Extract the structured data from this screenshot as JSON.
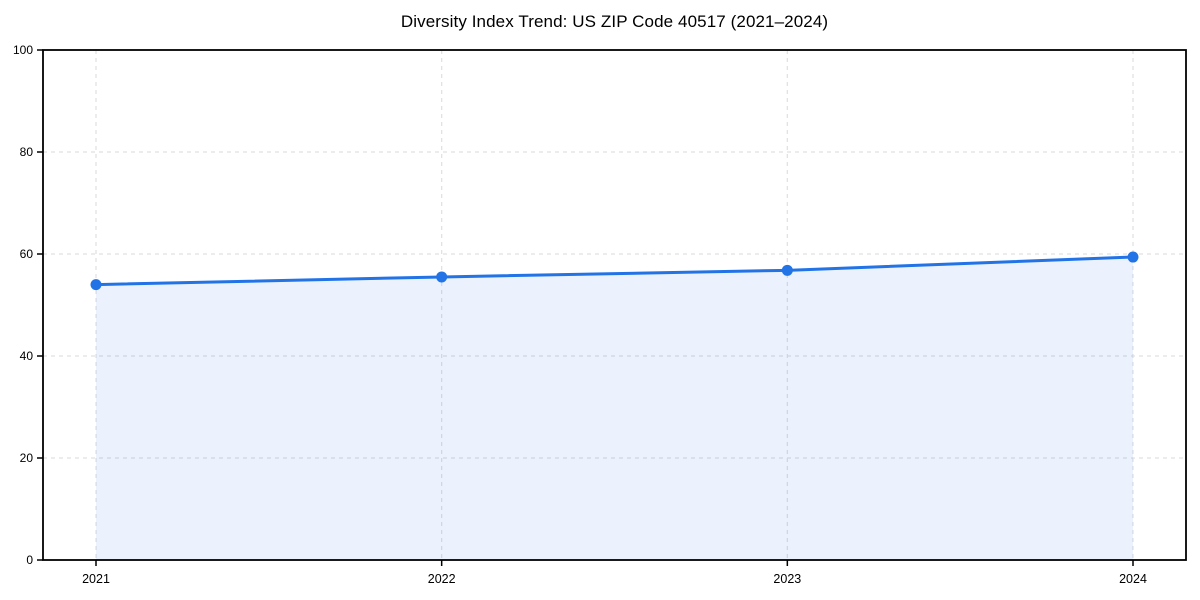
{
  "figure": {
    "background": "#ffffff"
  },
  "chart_data": {
    "type": "area",
    "title": "Diversity Index Trend: US ZIP Code 40517 (2021–2024)",
    "x": [
      "2021",
      "2022",
      "2023",
      "2024"
    ],
    "series": [
      {
        "name": "Diversity Index",
        "values": [
          54.0,
          55.5,
          56.8,
          59.4
        ]
      }
    ],
    "xlabel": "",
    "ylabel": "",
    "ylim": [
      0,
      100
    ],
    "yticks": [
      0,
      20,
      40,
      60,
      80,
      100
    ],
    "grid": true,
    "grid_style": "dashed",
    "legend": "none",
    "marker": "circle",
    "colors": {
      "line": "#2273e6",
      "marker": "#2273e6",
      "fill": "rgba(34, 115, 230, 0.09)",
      "grid": "#e0e0e0",
      "axis": "#000000",
      "text": "#000000"
    }
  }
}
